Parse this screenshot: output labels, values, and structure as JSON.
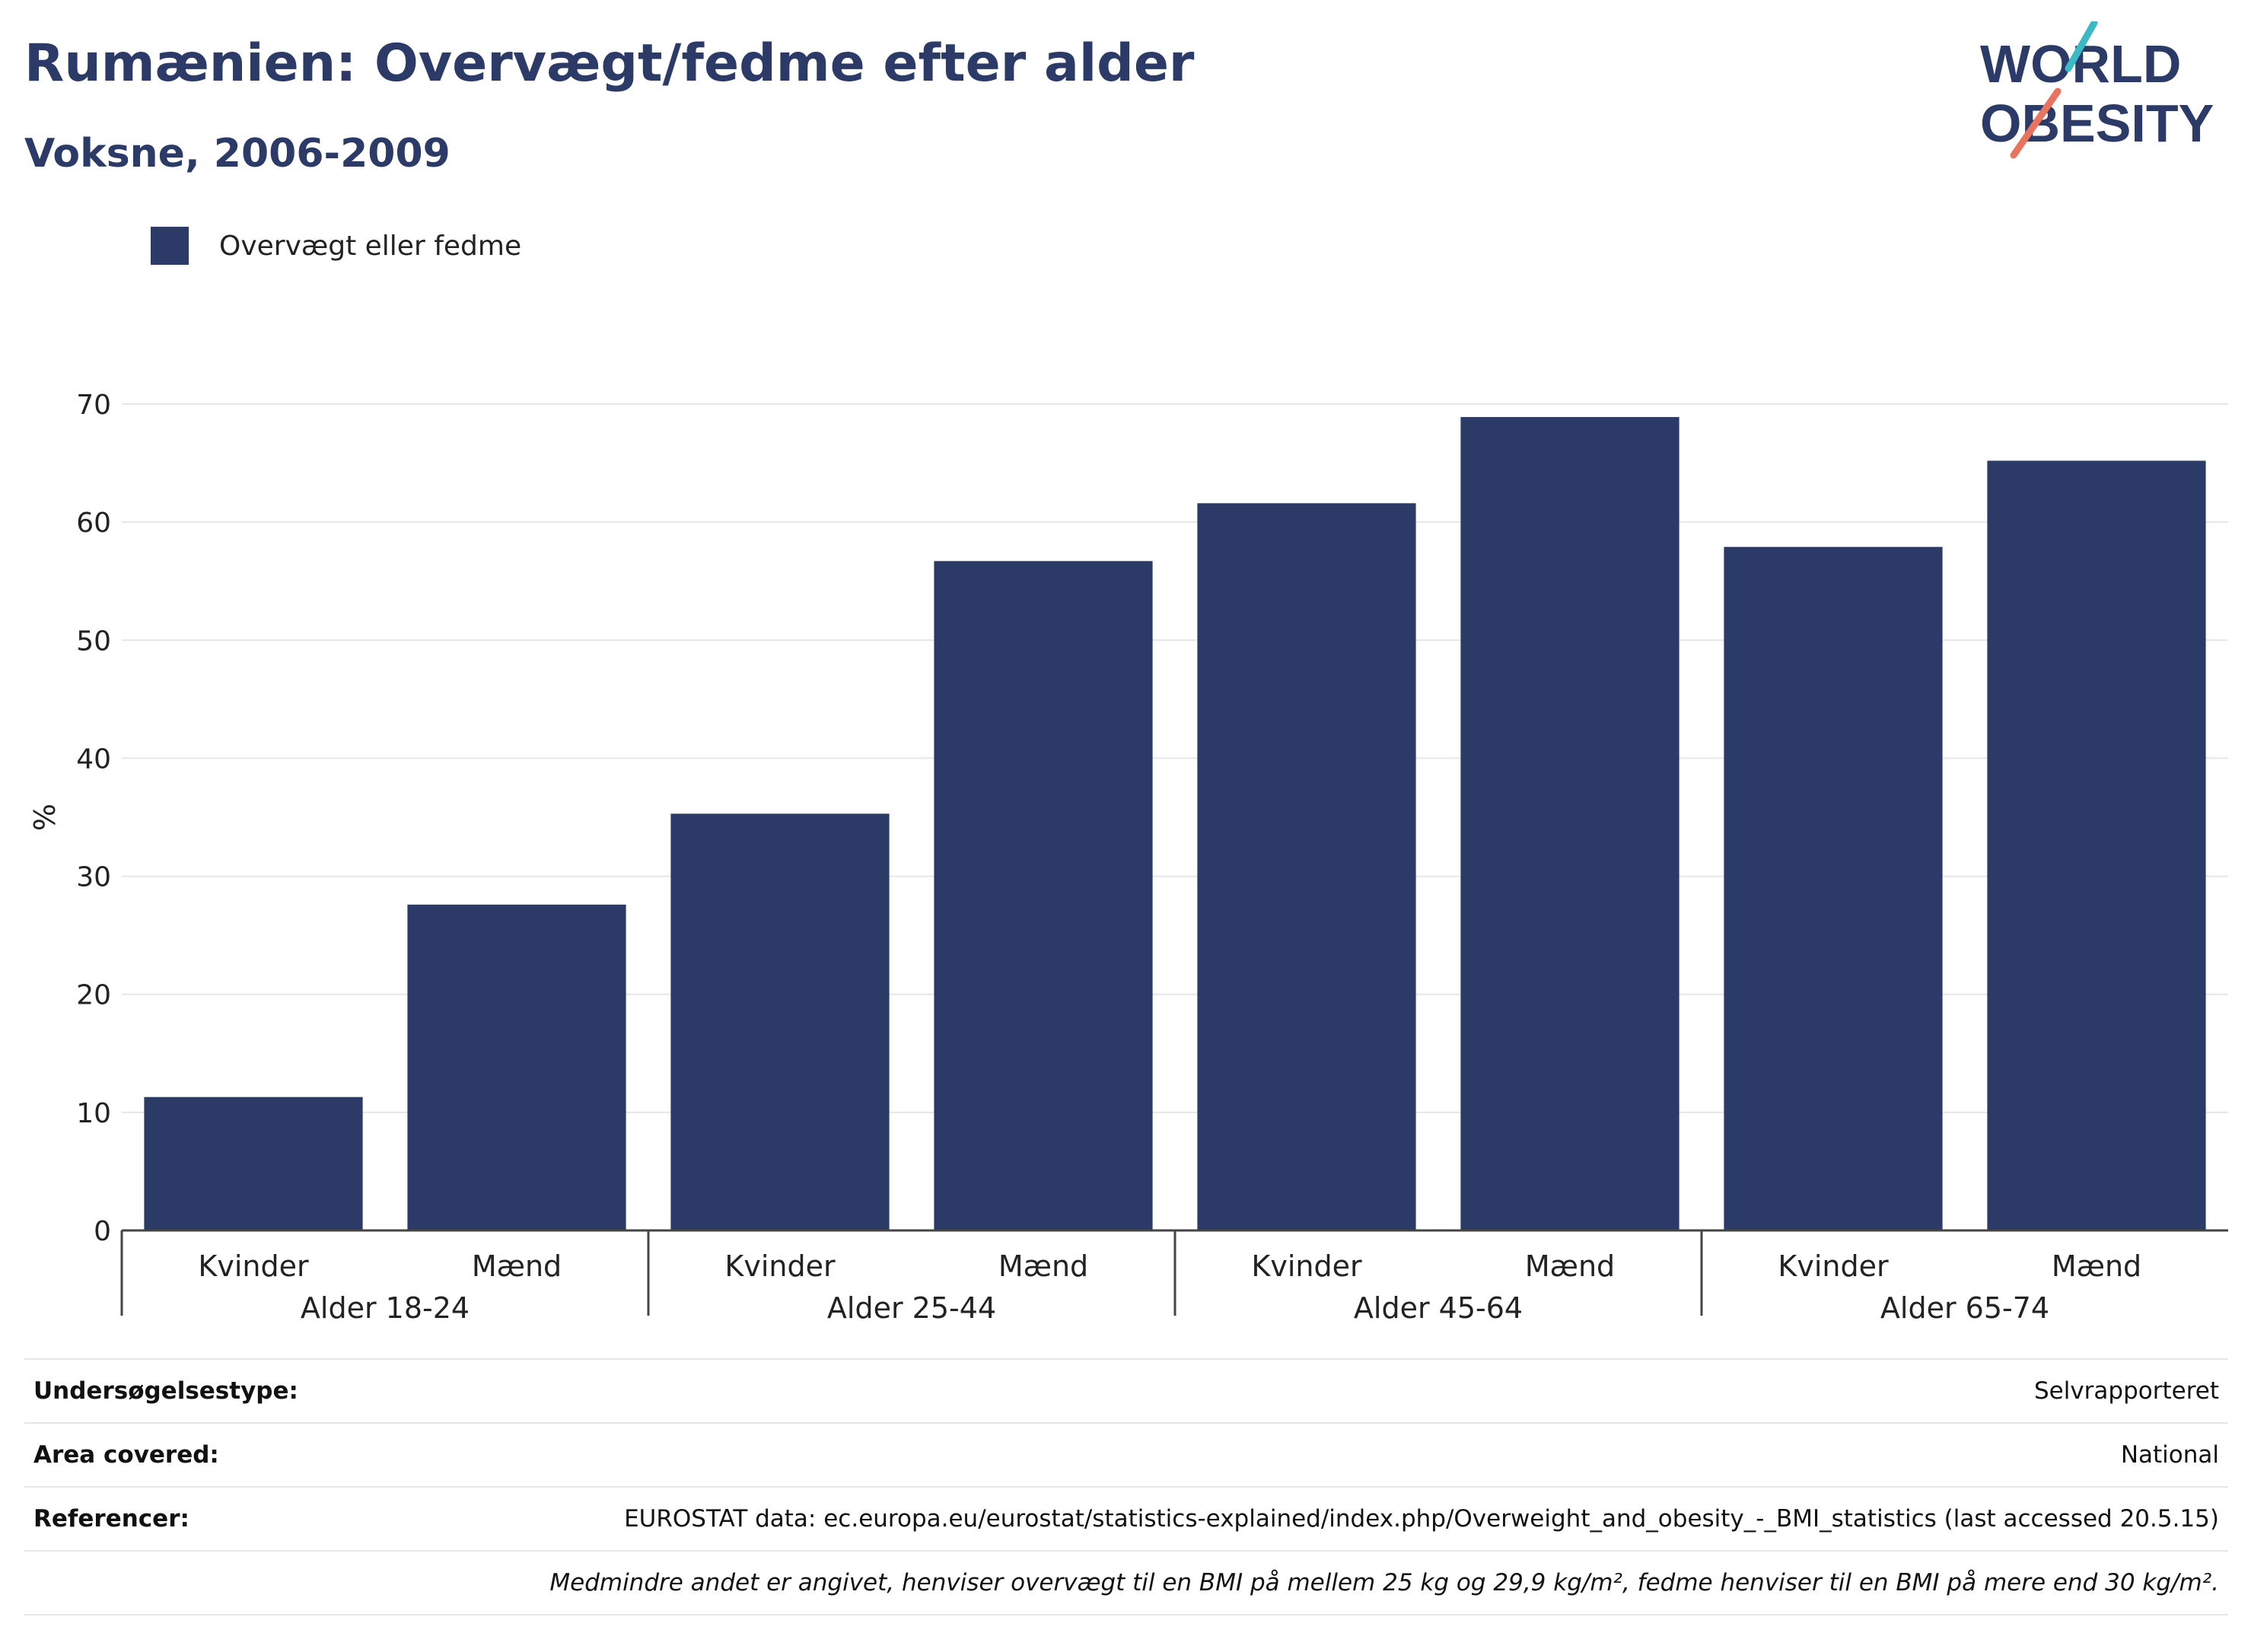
{
  "header": {
    "title": "Rumænien: Overvægt/fedme efter alder",
    "subtitle": "Voksne, 2006-2009"
  },
  "logo": {
    "line1": "WORLD",
    "line2": "OBESITY"
  },
  "colors": {
    "bar": "#2b3a67",
    "title": "#2b3a67",
    "grid": "#e6e6e6",
    "logo_teal": "#3bb9c4",
    "logo_coral": "#e8735f"
  },
  "chart_data": {
    "type": "bar",
    "legend": {
      "position": "top-left",
      "entries": [
        "Overvægt eller fedme"
      ]
    },
    "ylabel": "%",
    "ylim": [
      0,
      70
    ],
    "yticks": [
      0,
      10,
      20,
      30,
      40,
      50,
      60,
      70
    ],
    "grid": true,
    "groups": [
      "Alder 18-24",
      "Alder 25-44",
      "Alder 45-64",
      "Alder 65-74"
    ],
    "categories": [
      "Kvinder",
      "Mænd",
      "Kvinder",
      "Mænd",
      "Kvinder",
      "Mænd",
      "Kvinder",
      "Mænd"
    ],
    "series": [
      {
        "name": "Overvægt eller fedme",
        "values": [
          11.3,
          27.6,
          35.3,
          56.7,
          61.6,
          68.9,
          57.9,
          65.2
        ]
      }
    ]
  },
  "info": {
    "rows": [
      {
        "label": "Undersøgelsestype:",
        "value": "Selvrapporteret"
      },
      {
        "label": "Area covered:",
        "value": "National"
      },
      {
        "label": "Referencer:",
        "value": "EUROSTAT data: ec.europa.eu/eurostat/statistics-explained/index.php/Overweight_and_obesity_-_BMI_statistics (last accessed 20.5.15)"
      }
    ],
    "note": "Medmindre andet er angivet, henviser overvægt til en BMI på mellem 25 kg og 29,9 kg/m², fedme henviser til en BMI på mere end 30 kg/m²."
  }
}
